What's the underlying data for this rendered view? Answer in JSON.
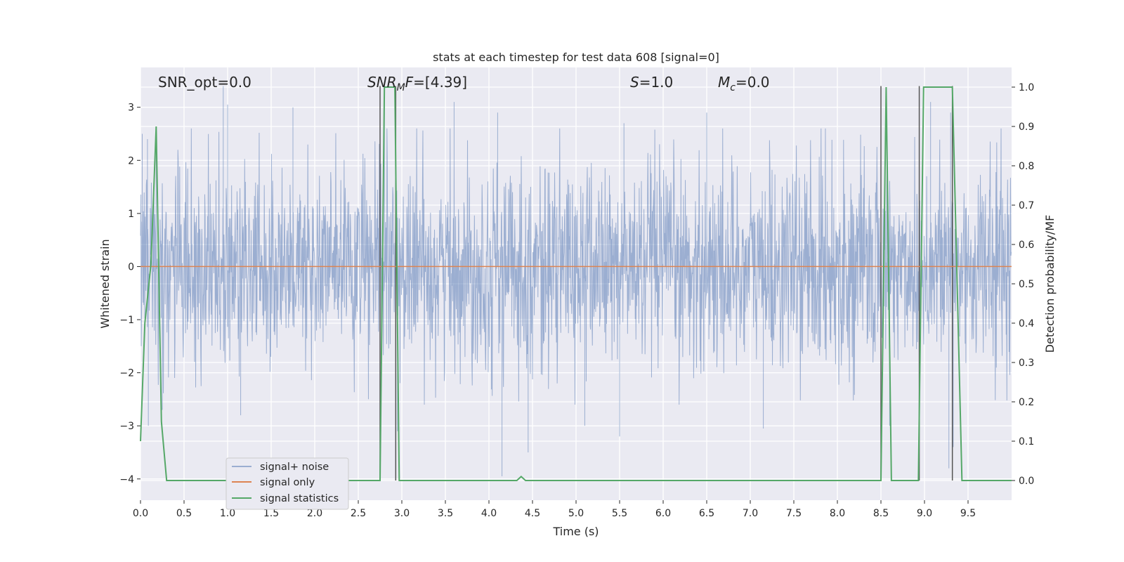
{
  "chart_data": {
    "type": "line",
    "title": "stats at each timestep for test data 608 [signal=0]",
    "xlabel": "Time (s)",
    "ylabel": "Whitened strain",
    "y2label": "Detection probability/MF",
    "xlim": [
      0.0,
      10.0
    ],
    "ylim": [
      -4.4,
      3.75
    ],
    "y2lim": [
      -0.05,
      1.05
    ],
    "xticks": [
      0.0,
      0.5,
      1.0,
      1.5,
      2.0,
      2.5,
      3.0,
      3.5,
      4.0,
      4.5,
      5.0,
      5.5,
      6.0,
      6.5,
      7.0,
      7.5,
      8.0,
      8.5,
      9.0,
      9.5
    ],
    "xtick_labels": [
      "0.0",
      "0.5",
      "1.0",
      "1.5",
      "2.0",
      "2.5",
      "3.0",
      "3.5",
      "4.0",
      "4.5",
      "5.0",
      "5.5",
      "6.0",
      "6.5",
      "7.0",
      "7.5",
      "8.0",
      "8.5",
      "9.0",
      "9.5"
    ],
    "yticks": [
      3,
      2,
      1,
      0,
      -1,
      -2,
      -3,
      -4
    ],
    "ytick_labels": [
      "3",
      "2",
      "1",
      "0",
      "−1",
      "−2",
      "−3",
      "−4"
    ],
    "y2ticks": [
      1.0,
      0.9,
      0.8,
      0.7,
      0.6,
      0.5,
      0.4,
      0.3,
      0.2,
      0.1,
      0.0
    ],
    "y2tick_labels": [
      "1.0",
      "0.9",
      "0.8",
      "0.7",
      "0.6",
      "0.5",
      "0.4",
      "0.3",
      "0.2",
      "0.1",
      "0.0"
    ],
    "grid": true,
    "legend_position": "lower-left",
    "annotations": {
      "snr_opt": "SNR_opt=0.0",
      "snr_mf_sym": "SNR",
      "snr_mf_sub": "M",
      "snr_mf_sym2": "F",
      "snr_mf_val": "=[4.39]",
      "s_sym": "S",
      "s_val": "=1.0",
      "mc_sym": "M",
      "mc_sub": "c",
      "mc_val": "=0.0"
    },
    "series": [
      {
        "name": "signal+ noise",
        "color": "#4c72b0",
        "alpha": 0.5,
        "description_kind": "whitened noise, approx. gaussian with std ~1",
        "peaks": [
          [
            0.02,
            2.5
          ],
          [
            0.08,
            2.4
          ],
          [
            0.18,
            2.6
          ],
          [
            0.95,
            3.4
          ],
          [
            1.0,
            3.05
          ],
          [
            1.75,
            3.0
          ],
          [
            2.8,
            3.3
          ],
          [
            3.6,
            3.1
          ],
          [
            6.5,
            2.9
          ],
          [
            9.07,
            3.1
          ],
          [
            9.3,
            2.9
          ],
          [
            4.1,
            2.9
          ],
          [
            5.55,
            2.7
          ]
        ],
        "troughs": [
          [
            0.09,
            -3.0
          ],
          [
            0.25,
            -2.7
          ],
          [
            1.15,
            -2.8
          ],
          [
            2.95,
            -3.1
          ],
          [
            4.15,
            -3.95
          ],
          [
            4.45,
            -3.5
          ],
          [
            5.1,
            -3.0
          ],
          [
            5.5,
            -3.2
          ],
          [
            7.15,
            -3.05
          ],
          [
            8.6,
            -3.0
          ],
          [
            9.28,
            -3.8
          ],
          [
            9.33,
            -3.4
          ]
        ]
      },
      {
        "name": "signal only",
        "color": "#dd8452",
        "x": [
          0.0,
          10.0
        ],
        "y": [
          0.0,
          0.0
        ]
      },
      {
        "name": "signal statistics",
        "color": "#55a868",
        "axis": "right",
        "x": [
          0.0,
          0.05,
          0.12,
          0.18,
          0.24,
          0.3,
          2.75,
          2.8,
          2.92,
          2.97,
          4.32,
          4.37,
          4.42,
          8.5,
          8.56,
          8.62,
          8.93,
          8.99,
          9.32,
          9.43,
          10.0
        ],
        "y": [
          0.1,
          0.4,
          0.55,
          0.9,
          0.15,
          0.0,
          0.0,
          1.0,
          1.0,
          0.0,
          0.0,
          0.01,
          0.0,
          0.0,
          1.0,
          0.0,
          0.0,
          1.0,
          1.0,
          0.0,
          0.0
        ]
      }
    ],
    "vlines": {
      "color": "#555555",
      "x": [
        2.75,
        2.93,
        8.5,
        8.94,
        9.32
      ],
      "y_top": 3.4
    },
    "legend": [
      {
        "label": "signal+ noise",
        "color": "#4c72b0",
        "alpha": 0.5
      },
      {
        "label": "signal only",
        "color": "#dd8452",
        "alpha": 1
      },
      {
        "label": "signal statistics",
        "color": "#55a868",
        "alpha": 1
      }
    ]
  }
}
